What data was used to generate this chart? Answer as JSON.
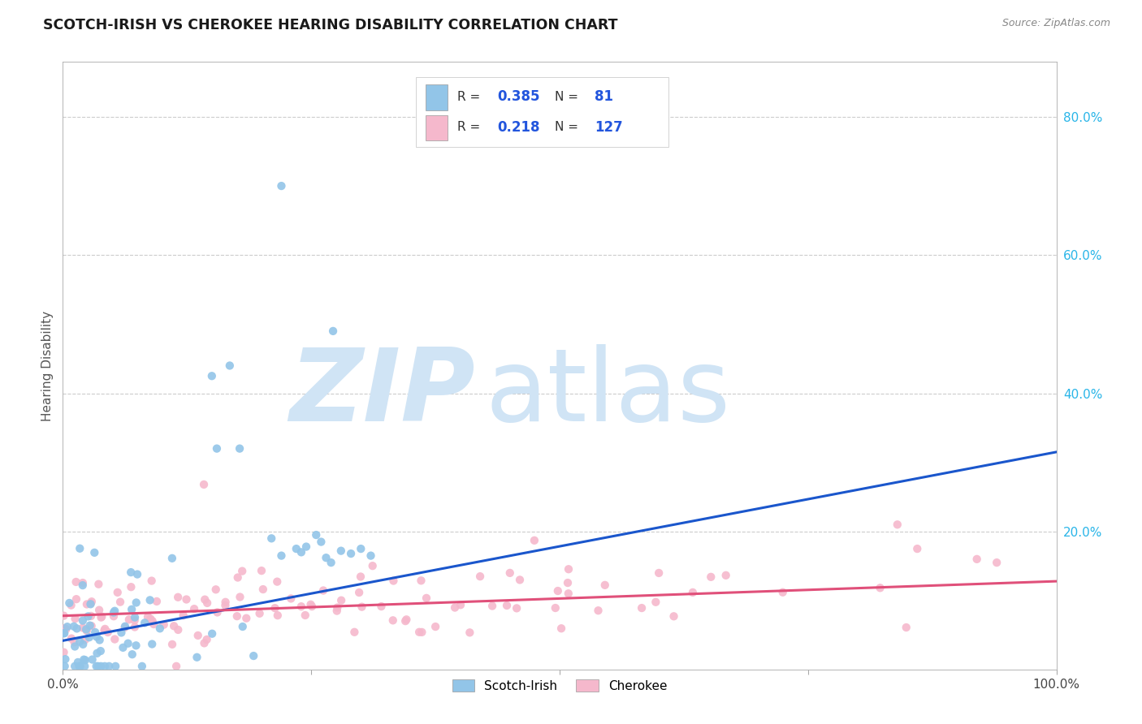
{
  "title": "SCOTCH-IRISH VS CHEROKEE HEARING DISABILITY CORRELATION CHART",
  "source": "Source: ZipAtlas.com",
  "ylabel": "Hearing Disability",
  "xlim": [
    0.0,
    1.0
  ],
  "ylim": [
    0.0,
    0.88
  ],
  "scotch_irish_R": 0.385,
  "scotch_irish_N": 81,
  "cherokee_R": 0.218,
  "cherokee_N": 127,
  "blue_marker_color": "#92c5e8",
  "pink_marker_color": "#f5b8cc",
  "blue_line_color": "#1a56cc",
  "pink_line_color": "#e0507a",
  "legend_R_color": "#2255dd",
  "watermark_zip_color": "#d0e4f5",
  "watermark_atlas_color": "#d0e4f5",
  "title_color": "#1a1a1a",
  "source_color": "#888888",
  "grid_color": "#cccccc",
  "right_tick_color": "#29b5e8",
  "si_line_x0": 0.0,
  "si_line_y0": 0.042,
  "si_line_x1": 1.0,
  "si_line_y1": 0.315,
  "ch_line_x0": 0.0,
  "ch_line_y0": 0.078,
  "ch_line_x1": 1.0,
  "ch_line_y1": 0.128
}
